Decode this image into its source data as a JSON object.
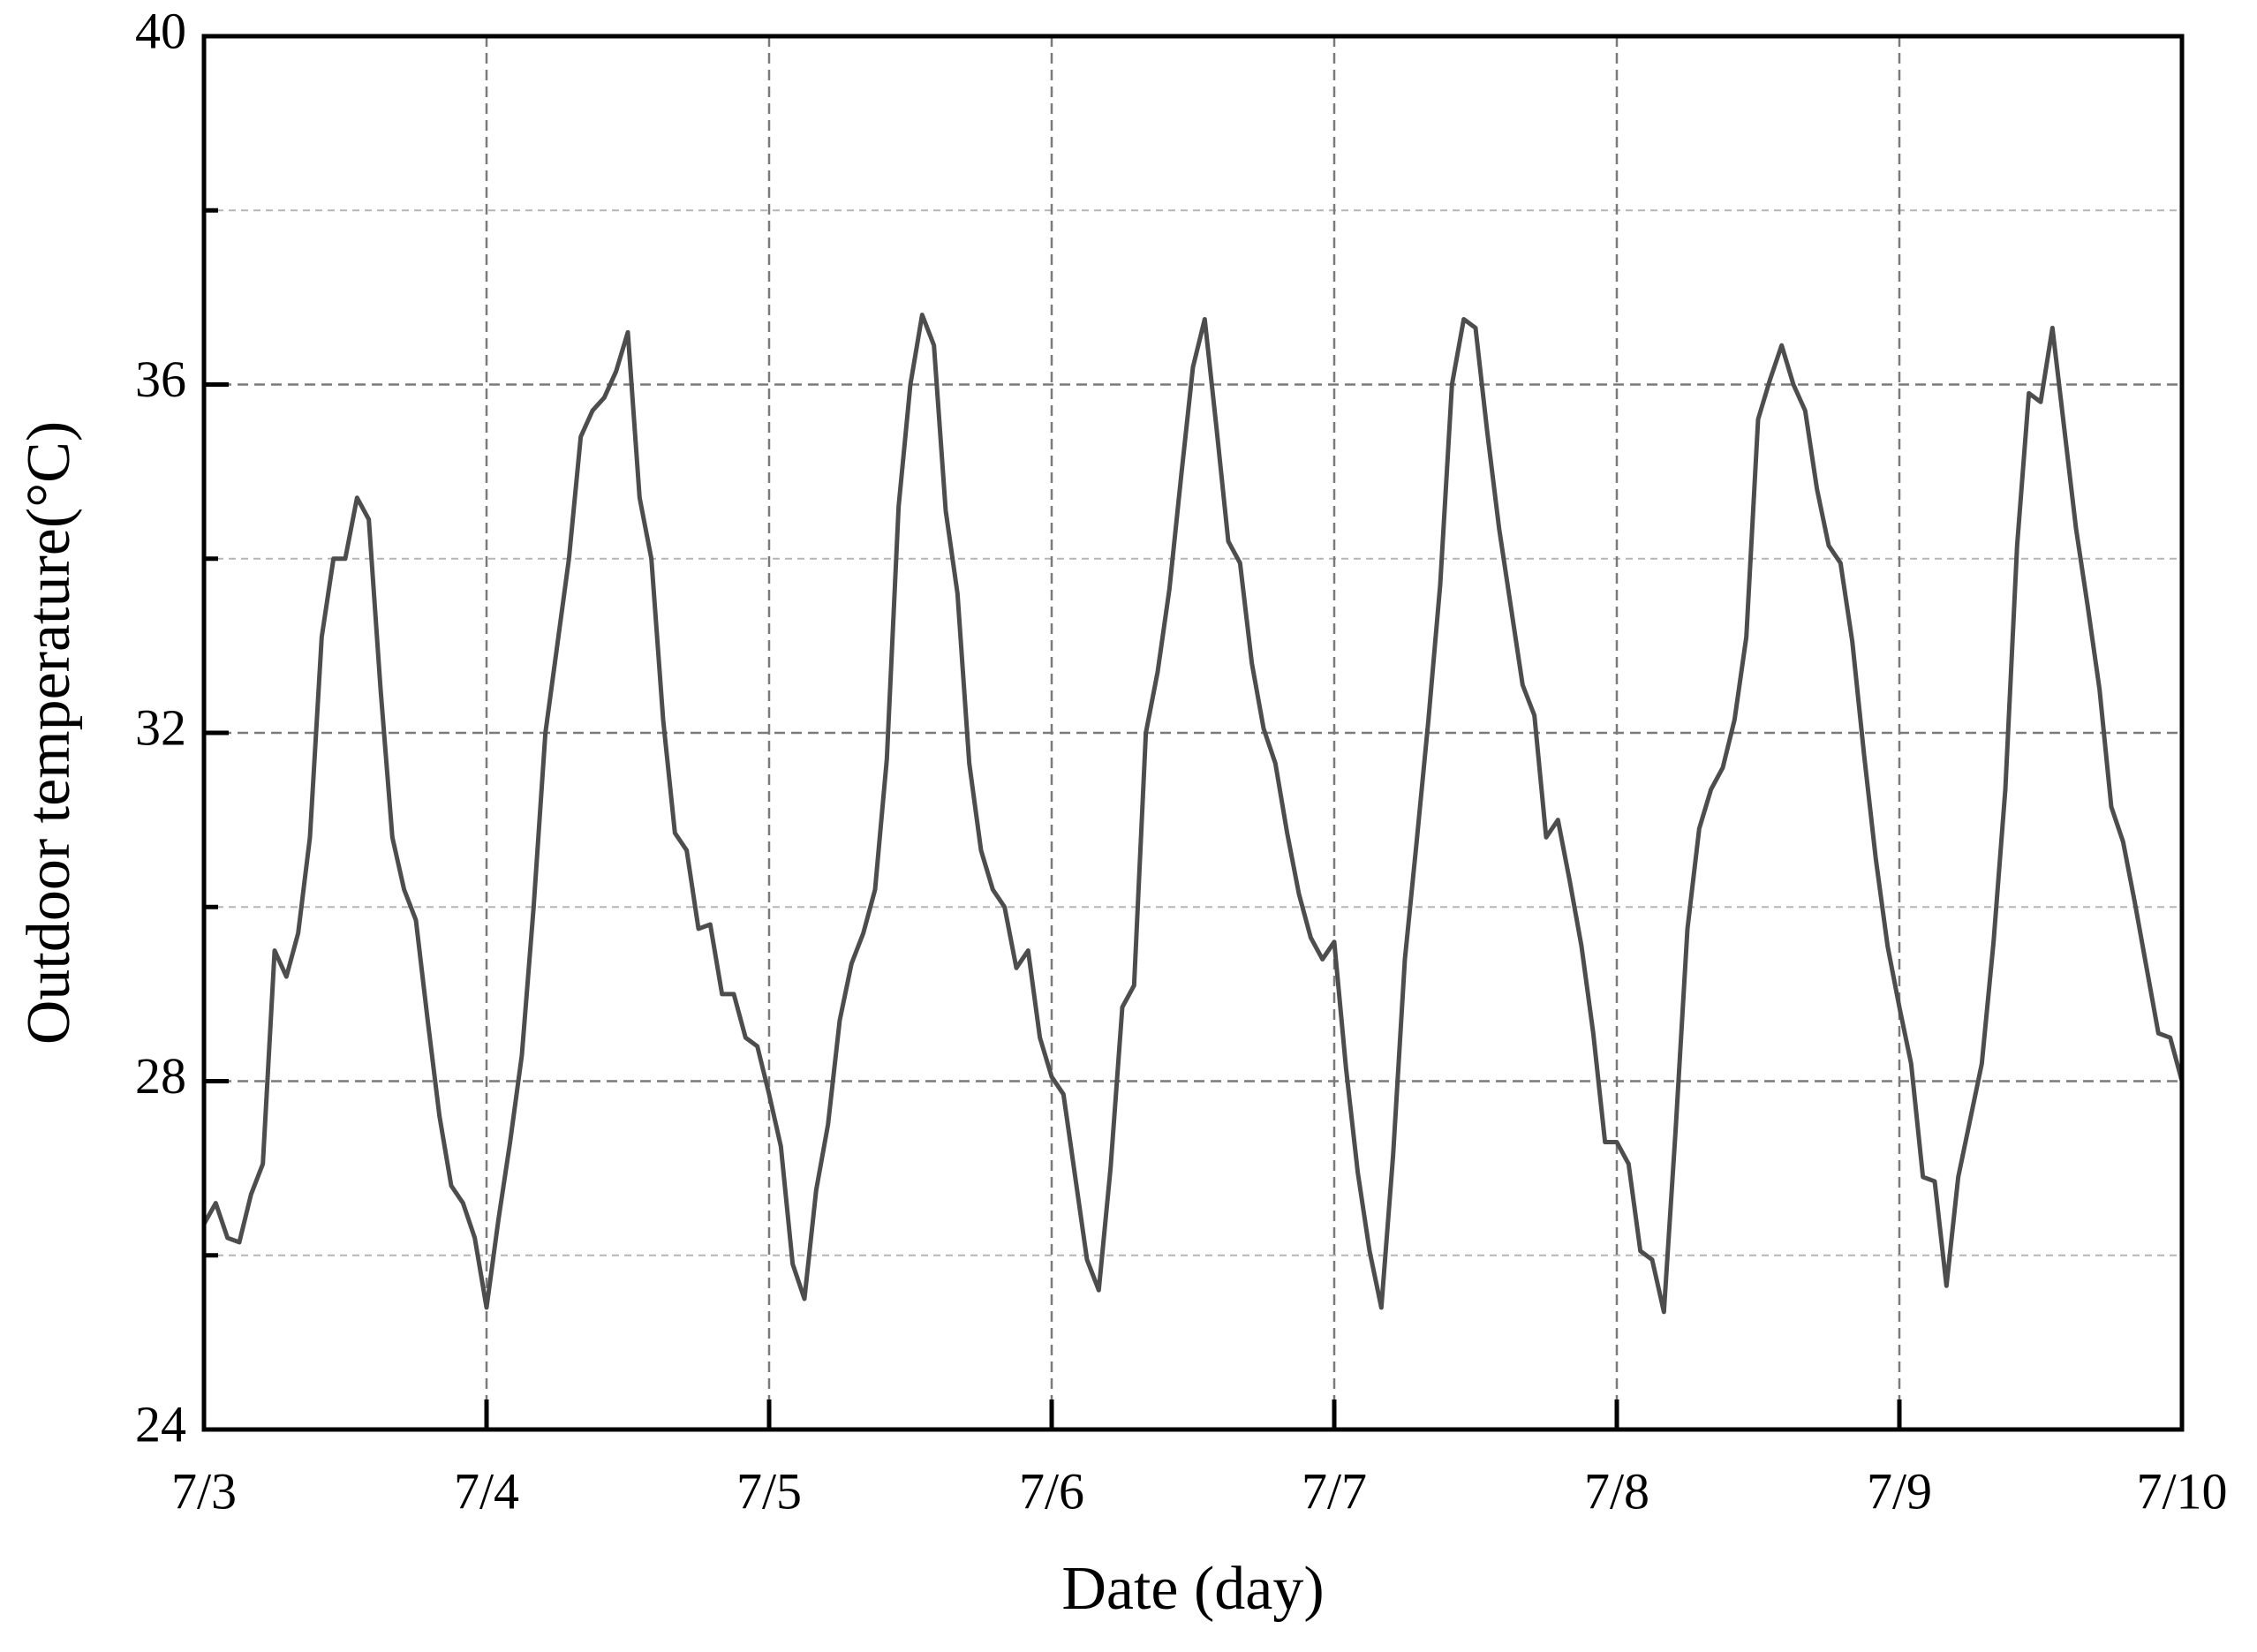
{
  "chart_data": {
    "type": "line",
    "xlabel": "Date (day)",
    "ylabel": "Outdoor temperature(°C)",
    "x": [
      0,
      1,
      2,
      3,
      4,
      5,
      6,
      7,
      8,
      9,
      10,
      11,
      12,
      13,
      14,
      15,
      16,
      17,
      18,
      19,
      20,
      21,
      22,
      23,
      24,
      25,
      26,
      27,
      28,
      29,
      30,
      31,
      32,
      33,
      34,
      35,
      36,
      37,
      38,
      39,
      40,
      41,
      42,
      43,
      44,
      45,
      46,
      47,
      48,
      49,
      50,
      51,
      52,
      53,
      54,
      55,
      56,
      57,
      58,
      59,
      60,
      61,
      62,
      63,
      64,
      65,
      66,
      67,
      68,
      69,
      70,
      71,
      72,
      73,
      74,
      75,
      76,
      77,
      78,
      79,
      80,
      81,
      82,
      83,
      84,
      85,
      86,
      87,
      88,
      89,
      90,
      91,
      92,
      93,
      94,
      95,
      96,
      97,
      98,
      99,
      100,
      101,
      102,
      103,
      104,
      105,
      106,
      107,
      108,
      109,
      110,
      111,
      112,
      113,
      114,
      115,
      116,
      117,
      118,
      119,
      120,
      121,
      122,
      123,
      124,
      125,
      126,
      127,
      128,
      129,
      130,
      131,
      132,
      133,
      134,
      135,
      136,
      137,
      138,
      139,
      140,
      141,
      142,
      143,
      144,
      145,
      146,
      147,
      148,
      149,
      150,
      151,
      152,
      153,
      154,
      155,
      156,
      157,
      158,
      159,
      160,
      161,
      162,
      163,
      164,
      165,
      166,
      167,
      168
    ],
    "values": [
      26.36,
      26.6,
      26.2,
      26.15,
      26.7,
      27.05,
      29.5,
      29.2,
      29.7,
      30.8,
      33.1,
      34.0,
      34.0,
      34.7,
      34.45,
      32.5,
      30.8,
      30.2,
      29.85,
      28.7,
      27.6,
      26.8,
      26.6,
      26.2,
      25.4,
      26.4,
      27.3,
      28.3,
      30.0,
      32.0,
      33.0,
      34.0,
      35.4,
      35.7,
      35.85,
      36.15,
      36.6,
      34.7,
      34.0,
      32.15,
      30.85,
      30.65,
      29.75,
      29.8,
      29.0,
      29.0,
      28.5,
      28.4,
      27.85,
      27.25,
      25.9,
      25.5,
      26.75,
      27.5,
      28.7,
      29.35,
      29.7,
      30.2,
      31.7,
      34.6,
      36.0,
      36.8,
      36.45,
      34.55,
      33.6,
      31.65,
      30.65,
      30.2,
      30.0,
      29.3,
      29.5,
      28.5,
      28.05,
      27.85,
      26.9,
      25.95,
      25.6,
      27.0,
      28.85,
      29.1,
      32.0,
      32.7,
      33.65,
      34.95,
      36.2,
      36.75,
      35.5,
      34.2,
      33.95,
      32.8,
      32.05,
      31.65,
      30.85,
      30.15,
      29.65,
      29.4,
      29.6,
      28.15,
      26.95,
      26.05,
      25.4,
      27.15,
      29.4,
      30.75,
      32.15,
      33.7,
      36.0,
      36.75,
      36.65,
      35.45,
      34.35,
      33.45,
      32.55,
      32.2,
      30.8,
      31.0,
      30.3,
      29.55,
      28.55,
      27.3,
      27.3,
      27.05,
      26.05,
      25.95,
      25.35,
      27.45,
      29.75,
      30.9,
      31.35,
      31.6,
      32.15,
      33.1,
      35.6,
      36.05,
      36.45,
      36.0,
      35.7,
      34.8,
      34.15,
      33.95,
      33.05,
      31.75,
      30.55,
      29.55,
      28.85,
      28.2,
      26.9,
      26.85,
      25.65,
      26.9,
      27.55,
      28.2,
      29.6,
      31.35,
      34.15,
      35.9,
      35.8,
      36.65,
      35.5,
      34.35,
      33.45,
      32.5,
      31.15,
      30.75,
      30.05,
      29.3,
      28.55,
      28.5,
      28.0
    ],
    "color": "#4d4d4d",
    "xlim": [
      0,
      168
    ],
    "xticks": [
      {
        "value": 0,
        "label": "7/3"
      },
      {
        "value": 24,
        "label": "7/4"
      },
      {
        "value": 48,
        "label": "7/5"
      },
      {
        "value": 72,
        "label": "7/6"
      },
      {
        "value": 96,
        "label": "7/7"
      },
      {
        "value": 120,
        "label": "7/8"
      },
      {
        "value": 144,
        "label": "7/9"
      },
      {
        "value": 168,
        "label": "7/10"
      }
    ],
    "ylim": [
      24,
      40
    ],
    "yticks": [
      24,
      28,
      32,
      36,
      40
    ],
    "minor_yticks": [
      26,
      30,
      34,
      38
    ],
    "grid": true
  }
}
